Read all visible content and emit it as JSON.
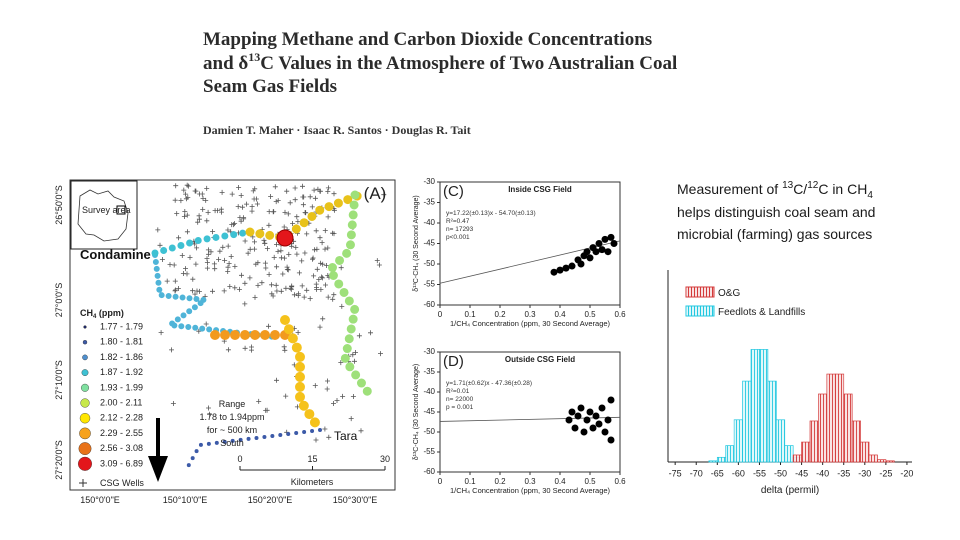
{
  "header": {
    "title": {
      "line1": "Mapping Methane and Carbon Dioxide Concentrations",
      "line2_pre": "and δ",
      "line2_sup": "13",
      "line2_post": "C Values in the Atmosphere of Two Australian Coal",
      "line3": "Seam Gas Fields"
    },
    "authors": "Damien T. Maher · Isaac R. Santos · Douglas R. Tait"
  },
  "caption": {
    "line1": [
      "Measurement of ",
      "13",
      "C/",
      "12",
      "C in CH",
      "4"
    ],
    "line2": "helps distinguish coal seam and",
    "line3": "microbial (farming) gas sources"
  },
  "map": {
    "panel_label": "(A)",
    "inset_label": "Survey area",
    "towns": [
      "Condamine",
      "Tara"
    ],
    "range_note": [
      "Range",
      "1.78 to 1.94ppm",
      "for ~ 500 km",
      "South"
    ],
    "lat_labels": [
      "26°50'0\"S",
      "27°0'0\"S",
      "27°10'0\"S",
      "27°20'0\"S"
    ],
    "lon_labels": [
      "150°0'0\"E",
      "150°10'0\"E",
      "150°20'0\"E",
      "150°30'0\"E"
    ],
    "scale": {
      "ticks": [
        0,
        15,
        30
      ],
      "unit": "Kilometers"
    },
    "legend": {
      "title": [
        "CH",
        "4",
        " (ppm)"
      ],
      "classes": [
        {
          "label": "1.77 - 1.79",
          "color": "#1f2a6b"
        },
        {
          "label": "1.80 - 1.81",
          "color": "#3c5aa8"
        },
        {
          "label": "1.82 - 1.86",
          "color": "#4f8fce"
        },
        {
          "label": "1.87 - 1.92",
          "color": "#3ec1d3"
        },
        {
          "label": "1.93 - 1.99",
          "color": "#7fe0a0"
        },
        {
          "label": "2.00 - 2.11",
          "color": "#c7e84a"
        },
        {
          "label": "2.12 - 2.28",
          "color": "#ffe600"
        },
        {
          "label": "2.29 - 2.55",
          "color": "#f7a21b"
        },
        {
          "label": "2.56 - 3.08",
          "color": "#e8731a"
        },
        {
          "label": "3.09 - 6.89",
          "color": "#e3161b"
        }
      ],
      "wells": "CSG Wells"
    }
  },
  "panel_c": {
    "panel_label": "(C)",
    "title": "Inside CSG Field",
    "stats": [
      "y=17.22(±0.13)x - 54.70(±0.13)",
      "R²=0.47",
      "n= 17293",
      "p<0.001"
    ],
    "fit": {
      "slope": 17.22,
      "intercept": -54.7
    },
    "ylabel": "δ¹³C-CH₄ (30 Second Average)",
    "xlabel": "1/CH₄ Concentration (ppm, 30 Second Average)",
    "xlim": [
      0,
      0.6
    ],
    "ylim": [
      -60,
      -30
    ],
    "xticks": [
      0,
      0.1,
      0.2,
      0.3,
      0.4,
      0.5,
      0.6
    ],
    "yticks": [
      -30,
      -35,
      -40,
      -45,
      -50,
      -55,
      -60
    ],
    "x": [
      0.38,
      0.4,
      0.42,
      0.44,
      0.46,
      0.47,
      0.48,
      0.49,
      0.5,
      0.51,
      0.52,
      0.53,
      0.54,
      0.55,
      0.56,
      0.57,
      0.58
    ],
    "y": [
      -52,
      -51.5,
      -51,
      -50.5,
      -49,
      -50,
      -48,
      -47,
      -48.5,
      -46,
      -47,
      -45,
      -46.5,
      -44,
      -47,
      -43.5,
      -45
    ]
  },
  "panel_d": {
    "panel_label": "(D)",
    "title": "Outside CSG Field",
    "stats": [
      "y=1.71(±0.62)x - 47.36(±0.28)",
      "R²=0.01",
      "n= 22000",
      "p = 0.001"
    ],
    "fit": {
      "slope": 1.71,
      "intercept": -47.36
    },
    "ylabel": "δ¹³C-CH₄ (30 Second Average)",
    "xlabel": "1/CH₄ Concentration (ppm, 30 Second Average)",
    "xlim": [
      0,
      0.6
    ],
    "ylim": [
      -60,
      -30
    ],
    "xticks": [
      0,
      0.1,
      0.2,
      0.3,
      0.4,
      0.5,
      0.6
    ],
    "yticks": [
      -30,
      -35,
      -40,
      -45,
      -50,
      -55,
      -60
    ],
    "x": [
      0.43,
      0.44,
      0.45,
      0.46,
      0.47,
      0.48,
      0.49,
      0.5,
      0.51,
      0.52,
      0.53,
      0.54,
      0.55,
      0.56,
      0.57,
      0.57
    ],
    "y": [
      -47,
      -45,
      -49,
      -46,
      -44,
      -50,
      -47,
      -45,
      -49,
      -46,
      -48,
      -44,
      -50,
      -47,
      -42,
      -52
    ]
  },
  "histogram": {
    "type": "histogram",
    "xlabel": "delta (permil)",
    "xlim": [
      -76.7,
      -18.8
    ],
    "ylim": [
      0,
      145
    ],
    "xticks": [
      -75,
      -70,
      -65,
      -60,
      -55,
      -50,
      -45,
      -40,
      -35,
      -30,
      -25,
      -20
    ],
    "series": [
      {
        "name": "O&G",
        "color": "#d43a3a",
        "bins": [
          -47,
          -45,
          -43,
          -41,
          -39,
          -37,
          -35,
          -33,
          -31,
          -29,
          -27,
          -25,
          -23
        ],
        "values": [
          6,
          17,
          35,
          58,
          75,
          75,
          58,
          35,
          17,
          6,
          2,
          1
        ]
      },
      {
        "name": "Feedlots & Landfills",
        "color": "#22c8e0",
        "bins": [
          -67,
          -65,
          -63,
          -61,
          -59,
          -57,
          -55,
          -53,
          -51,
          -49,
          -47,
          -45,
          -43
        ],
        "values": [
          1,
          4,
          14,
          36,
          69,
          96,
          96,
          69,
          36,
          14,
          4,
          1
        ]
      }
    ]
  }
}
